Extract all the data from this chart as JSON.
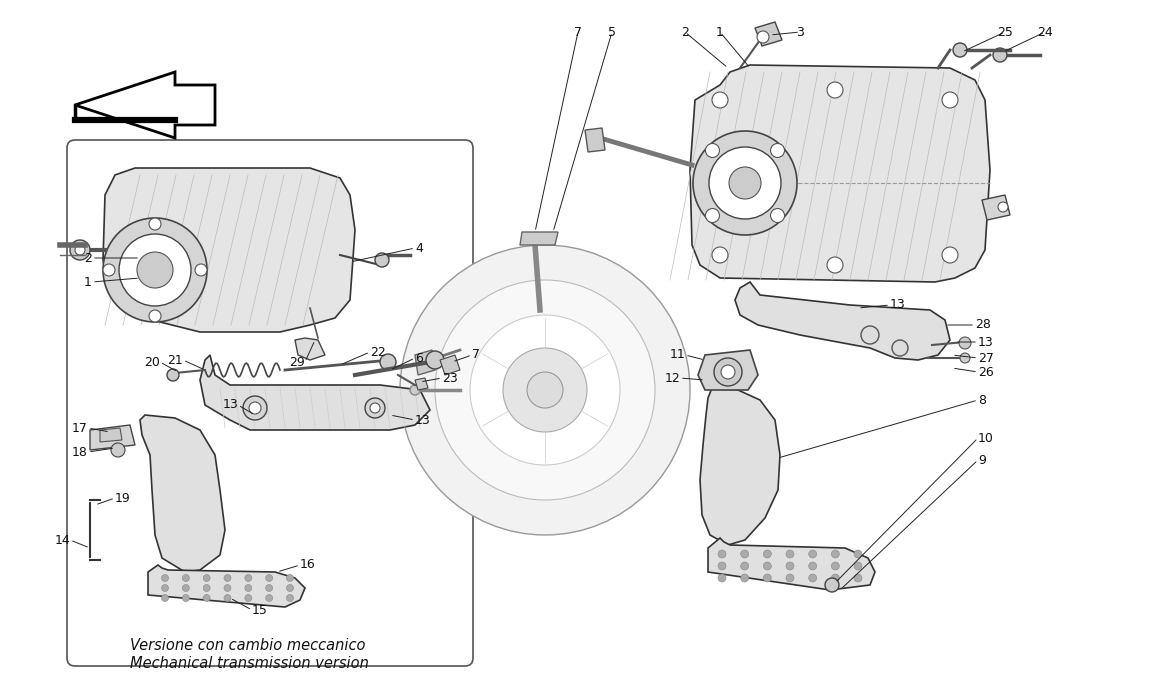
{
  "bg_color": "#ffffff",
  "line_color": "#000000",
  "caption_line1": "Versione con cambio meccanico",
  "caption_line2": "Mechanical transmission version",
  "caption_fontsize": 10.5,
  "label_fontsize": 9,
  "figsize": [
    11.5,
    6.83
  ],
  "dpi": 100
}
